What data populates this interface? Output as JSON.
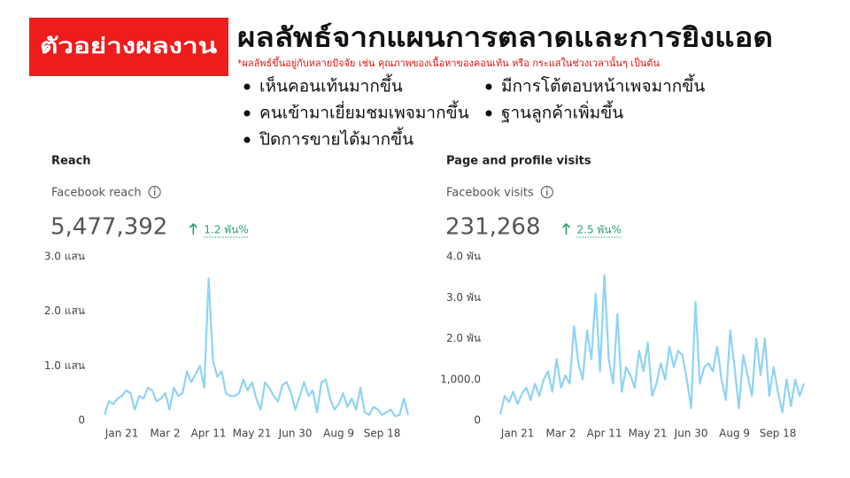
{
  "header": {
    "badge": "ตัวอย่างผลงาน",
    "title": "ผลลัพธ์จากแผนการตลาดและการยิงแอด",
    "note": "*ผลลัพธ์ขึ้นอยู่กับหลายปัจจัย เช่น คุณภาพของเนื้อหาของคอนเท้น หรือ กระแสในช่วงเวลานั้นๆ เป็นต้น",
    "bullets": [
      "เห็นคอนเท้นมากขึ้น",
      "คนเข้ามาเยี่ยมชมเพจมากขึ้น",
      "ปิดการขายได้มากขึ้น",
      "มีการโต้ตอบหน้าเพจมากขึ้น",
      "ฐานลูกค้าเพิ่มขึ้น"
    ]
  },
  "chart_data": [
    {
      "type": "line",
      "title": "Reach",
      "metric": "Facebook reach",
      "total": "5,477,392",
      "change": "1.2 พัน%",
      "color": "#8fd3f5",
      "categories": [
        null,
        null,
        null,
        null,
        "Jan 21",
        null,
        null,
        null,
        null,
        null,
        null,
        null,
        null,
        null,
        "Mar 2",
        null,
        null,
        null,
        null,
        null,
        null,
        null,
        null,
        null,
        "Apr 11",
        null,
        null,
        null,
        null,
        null,
        null,
        null,
        null,
        null,
        "May 21",
        null,
        null,
        null,
        null,
        null,
        null,
        null,
        null,
        null,
        "Jun 30",
        null,
        null,
        null,
        null,
        null,
        null,
        null,
        null,
        null,
        "Aug 9",
        null,
        null,
        null,
        null,
        null,
        null,
        null,
        null,
        null,
        "Sep 18",
        null,
        null,
        null,
        null,
        null,
        null
      ],
      "values": [
        10000,
        35000,
        30000,
        40000,
        45000,
        55000,
        50000,
        20000,
        45000,
        40000,
        60000,
        55000,
        35000,
        40000,
        50000,
        20000,
        60000,
        45000,
        50000,
        90000,
        70000,
        85000,
        100000,
        60000,
        260000,
        110000,
        80000,
        90000,
        50000,
        45000,
        45000,
        50000,
        75000,
        55000,
        70000,
        40000,
        20000,
        70000,
        60000,
        45000,
        35000,
        65000,
        70000,
        50000,
        20000,
        45000,
        70000,
        45000,
        55000,
        15000,
        70000,
        75000,
        40000,
        20000,
        30000,
        50000,
        25000,
        40000,
        20000,
        60000,
        15000,
        10000,
        25000,
        20000,
        10000,
        15000,
        20000,
        8000,
        10000,
        40000,
        10000
      ],
      "ylim": [
        0,
        300000
      ],
      "yticks": [
        0,
        {
          "value": 100000,
          "label": "1.0 แสน"
        },
        {
          "value": 200000,
          "label": "2.0 แสน"
        },
        {
          "value": 300000,
          "label": "3.0 แสน"
        }
      ]
    },
    {
      "type": "line",
      "title": "Page and profile visits",
      "metric": "Facebook visits",
      "total": "231,268",
      "change": "2.5 พัน%",
      "color": "#8fd3f5",
      "categories": [
        null,
        null,
        null,
        null,
        "Jan 21",
        null,
        null,
        null,
        null,
        null,
        null,
        null,
        null,
        null,
        "Mar 2",
        null,
        null,
        null,
        null,
        null,
        null,
        null,
        null,
        null,
        "Apr 11",
        null,
        null,
        null,
        null,
        null,
        null,
        null,
        null,
        null,
        "May 21",
        null,
        null,
        null,
        null,
        null,
        null,
        null,
        null,
        null,
        "Jun 30",
        null,
        null,
        null,
        null,
        null,
        null,
        null,
        null,
        null,
        "Aug 9",
        null,
        null,
        null,
        null,
        null,
        null,
        null,
        null,
        null,
        "Sep 18",
        null,
        null,
        null,
        null,
        null,
        null
      ],
      "values": [
        150,
        600,
        450,
        700,
        400,
        650,
        800,
        500,
        900,
        600,
        1000,
        1200,
        700,
        1500,
        800,
        1100,
        900,
        2300,
        1400,
        1000,
        2200,
        1500,
        3100,
        1200,
        3550,
        1500,
        900,
        2600,
        700,
        1300,
        1100,
        800,
        1700,
        1200,
        1900,
        600,
        900,
        1400,
        1000,
        1800,
        1300,
        1700,
        1600,
        1000,
        300,
        2900,
        900,
        1300,
        1400,
        1200,
        1800,
        1000,
        500,
        2200,
        1300,
        300,
        1600,
        1100,
        600,
        2000,
        1100,
        2000,
        600,
        1300,
        700,
        200,
        1000,
        350,
        1000,
        600,
        900
      ],
      "ylim": [
        0,
        4000
      ],
      "yticks": [
        0,
        {
          "value": 1000,
          "label": "1,000.0"
        },
        {
          "value": 2000,
          "label": "2.0 พัน"
        },
        {
          "value": 3000,
          "label": "3.0 พัน"
        },
        {
          "value": 4000,
          "label": "4.0 พัน"
        }
      ]
    }
  ]
}
